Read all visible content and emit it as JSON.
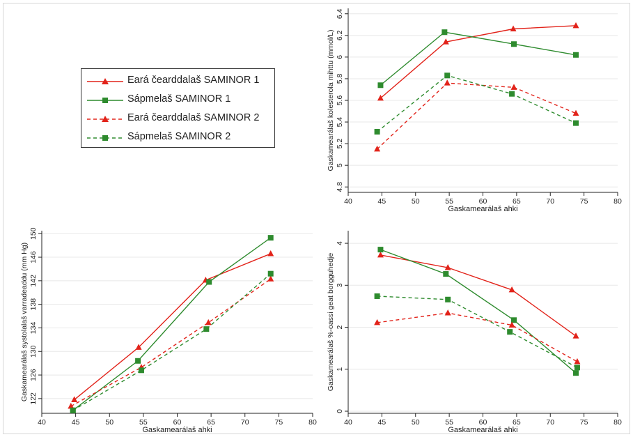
{
  "colors": {
    "red": "#e2231a",
    "green": "#2e8b2e"
  },
  "legend": {
    "items": [
      {
        "label": "Eará čearddalaš SAMINOR 1",
        "color": "red",
        "marker": "triangle",
        "dashed": false
      },
      {
        "label": "Sápmelaš SAMINOR 1",
        "color": "green",
        "marker": "square",
        "dashed": false
      },
      {
        "label": "Eará čearddalaš SAMINOR 2",
        "color": "red",
        "marker": "triangle",
        "dashed": true
      },
      {
        "label": "Sápmelaš SAMINOR 2",
        "color": "green",
        "marker": "square",
        "dashed": true
      }
    ]
  },
  "chart_data": [
    {
      "id": "cholesterol",
      "type": "line",
      "xlabel": "Gaskamearálaš ahki",
      "ylabel": "Gaskamearálaš kolesterola mihttu (mmol/L)",
      "xlim": [
        40,
        80
      ],
      "ylim": [
        4.75,
        6.45
      ],
      "xticks": [
        40,
        45,
        50,
        55,
        60,
        65,
        70,
        75,
        80
      ],
      "yticks": [
        4.8,
        5,
        5.2,
        5.4,
        5.6,
        5.8,
        6,
        6.2,
        6.4
      ],
      "grid": true,
      "series": [
        {
          "name": "Eará čearddalaš SAMINOR 1",
          "color": "red",
          "marker": "triangle",
          "dashed": false,
          "points": [
            [
              44.8,
              5.62
            ],
            [
              54.5,
              6.14
            ],
            [
              64.5,
              6.26
            ],
            [
              73.8,
              6.29
            ]
          ]
        },
        {
          "name": "Sápmelaš SAMINOR 1",
          "color": "green",
          "marker": "square",
          "dashed": false,
          "points": [
            [
              44.8,
              5.74
            ],
            [
              54.3,
              6.23
            ],
            [
              64.6,
              6.12
            ],
            [
              73.8,
              6.02
            ]
          ]
        },
        {
          "name": "Eará čearddalaš SAMINOR 2",
          "color": "red",
          "marker": "triangle",
          "dashed": true,
          "points": [
            [
              44.3,
              5.15
            ],
            [
              54.7,
              5.76
            ],
            [
              64.6,
              5.72
            ],
            [
              73.8,
              5.48
            ]
          ]
        },
        {
          "name": "Sápmelaš SAMINOR 2",
          "color": "green",
          "marker": "square",
          "dashed": true,
          "points": [
            [
              44.3,
              5.31
            ],
            [
              54.7,
              5.83
            ],
            [
              64.3,
              5.66
            ],
            [
              73.8,
              5.39
            ]
          ]
        }
      ]
    },
    {
      "id": "blood-pressure",
      "type": "line",
      "xlabel": "Gaskamearálaš ahki",
      "ylabel": "Gaskamearálaš systolalaš varradeaddu (mm Hg)",
      "xlim": [
        40,
        80
      ],
      "ylim": [
        119.5,
        150.5
      ],
      "xticks": [
        40,
        45,
        50,
        55,
        60,
        65,
        70,
        75,
        80
      ],
      "yticks": [
        122,
        126,
        130,
        134,
        138,
        142,
        146,
        150
      ],
      "grid": true,
      "series": [
        {
          "name": "Eará čearddalaš SAMINOR 1",
          "color": "red",
          "marker": "triangle",
          "dashed": false,
          "points": [
            [
              44.8,
              121.8
            ],
            [
              54.3,
              130.7
            ],
            [
              64.2,
              142.1
            ],
            [
              73.8,
              146.6
            ]
          ]
        },
        {
          "name": "Sápmelaš SAMINOR 1",
          "color": "green",
          "marker": "square",
          "dashed": false,
          "points": [
            [
              44.6,
              120.0
            ],
            [
              54.2,
              128.4
            ],
            [
              64.7,
              141.8
            ],
            [
              73.8,
              149.3
            ]
          ]
        },
        {
          "name": "Eará čearddalaš SAMINOR 2",
          "color": "red",
          "marker": "triangle",
          "dashed": true,
          "points": [
            [
              44.3,
              120.7
            ],
            [
              54.7,
              127.3
            ],
            [
              64.6,
              134.9
            ],
            [
              73.8,
              142.3
            ]
          ]
        },
        {
          "name": "Sápmelaš SAMINOR 2",
          "color": "green",
          "marker": "square",
          "dashed": true,
          "points": [
            [
              44.6,
              120.0
            ],
            [
              54.7,
              126.8
            ],
            [
              64.3,
              133.8
            ],
            [
              73.8,
              143.2
            ]
          ]
        }
      ]
    },
    {
      "id": "smoking",
      "type": "line",
      "xlabel": "Gaskamearálaš ahki",
      "ylabel": "Gaskamearálaš %-oassi geat borgguhedje",
      "xlim": [
        40,
        80
      ],
      "ylim": [
        -0.05,
        4.3
      ],
      "xticks": [
        40,
        45,
        50,
        55,
        60,
        65,
        70,
        75,
        80
      ],
      "yticks": [
        0,
        1,
        2,
        3,
        4
      ],
      "grid": true,
      "series": [
        {
          "name": "Eará čearddalaš SAMINOR 1",
          "color": "red",
          "marker": "triangle",
          "dashed": false,
          "points": [
            [
              44.8,
              3.72
            ],
            [
              54.8,
              3.42
            ],
            [
              64.3,
              2.89
            ],
            [
              73.8,
              1.79
            ]
          ]
        },
        {
          "name": "Sápmelaš SAMINOR 1",
          "color": "green",
          "marker": "square",
          "dashed": false,
          "points": [
            [
              44.8,
              3.85
            ],
            [
              54.5,
              3.27
            ],
            [
              64.6,
              2.17
            ],
            [
              73.8,
              0.91
            ]
          ]
        },
        {
          "name": "Eará čearddalaš SAMINOR 2",
          "color": "red",
          "marker": "triangle",
          "dashed": true,
          "points": [
            [
              44.3,
              2.11
            ],
            [
              54.8,
              2.34
            ],
            [
              64.3,
              2.05
            ],
            [
              74.0,
              1.18
            ]
          ]
        },
        {
          "name": "Sápmelaš SAMINOR 2",
          "color": "green",
          "marker": "square",
          "dashed": true,
          "points": [
            [
              44.3,
              2.74
            ],
            [
              54.8,
              2.66
            ],
            [
              64.0,
              1.89
            ],
            [
              74.0,
              1.04
            ]
          ]
        }
      ]
    }
  ]
}
